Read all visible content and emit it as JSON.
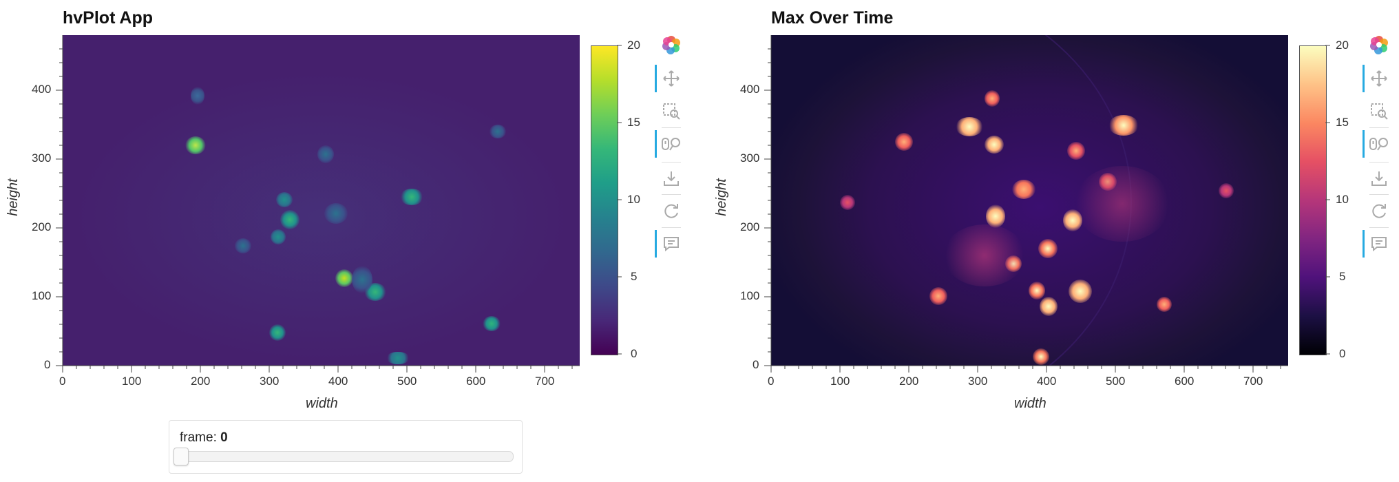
{
  "left_panel": {
    "title": "hvPlot App",
    "xlabel": "width",
    "ylabel": "height",
    "x_ticks": [
      "0",
      "100",
      "200",
      "300",
      "400",
      "500",
      "600",
      "700"
    ],
    "y_ticks": [
      "0",
      "100",
      "200",
      "300",
      "400"
    ],
    "colorbar_ticks": [
      "0",
      "5",
      "10",
      "15",
      "20"
    ],
    "colormap": "viridis",
    "colorbar_top": "#fde725",
    "colorbar_bottom": "#440154"
  },
  "right_panel": {
    "title": "Max Over Time",
    "xlabel": "width",
    "ylabel": "height",
    "x_ticks": [
      "0",
      "100",
      "200",
      "300",
      "400",
      "500",
      "600",
      "700"
    ],
    "y_ticks": [
      "0",
      "100",
      "200",
      "300",
      "400"
    ],
    "colorbar_ticks": [
      "0",
      "5",
      "10",
      "15",
      "20"
    ],
    "colormap": "magma",
    "colorbar_top": "#fcfdbf",
    "colorbar_bottom": "#000004"
  },
  "toolbar": {
    "items": [
      {
        "name": "bokeh-logo",
        "icon": "bokeh-logo-icon",
        "active": false
      },
      {
        "name": "pan",
        "icon": "pan-icon",
        "active": true
      },
      {
        "name": "box-zoom",
        "icon": "box-zoom-icon",
        "active": false
      },
      {
        "name": "wheel-zoom",
        "icon": "wheel-zoom-icon",
        "active": true
      },
      {
        "name": "save",
        "icon": "save-icon",
        "active": false
      },
      {
        "name": "reset",
        "icon": "reset-icon",
        "active": false
      },
      {
        "name": "hover",
        "icon": "hover-icon",
        "active": true
      }
    ]
  },
  "slider": {
    "label": "frame: ",
    "value": "0",
    "fraction": 0
  },
  "colors": {
    "accent": "#26aae1"
  }
}
